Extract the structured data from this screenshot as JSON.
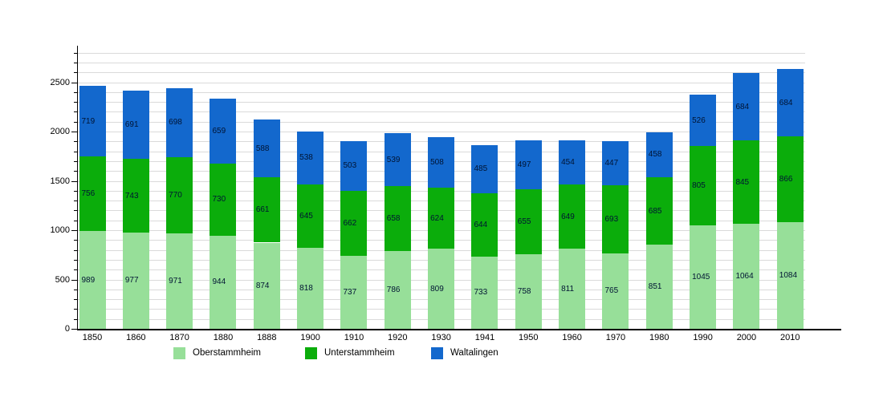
{
  "chart_data": {
    "type": "bar",
    "stacked": true,
    "title": "",
    "categories": [
      "1850",
      "1860",
      "1870",
      "1880",
      "1888",
      "1900",
      "1910",
      "1920",
      "1930",
      "1941",
      "1950",
      "1960",
      "1970",
      "1980",
      "1990",
      "2000",
      "2010"
    ],
    "series": [
      {
        "name": "Oberstammheim",
        "color": "#97DF99",
        "values": [
          989,
          977,
          971,
          944,
          874,
          818,
          737,
          786,
          809,
          733,
          758,
          811,
          765,
          851,
          1045,
          1064,
          1084
        ]
      },
      {
        "name": "Unterstammheim",
        "color": "#0BAD0B",
        "values": [
          756,
          743,
          770,
          730,
          661,
          645,
          662,
          658,
          624,
          644,
          655,
          649,
          693,
          685,
          805,
          845,
          866
        ]
      },
      {
        "name": "Waltalingen",
        "color": "#1368CD",
        "values": [
          719,
          691,
          698,
          659,
          588,
          538,
          503,
          539,
          508,
          485,
          497,
          454,
          447,
          458,
          526,
          684,
          684
        ]
      }
    ],
    "xlabel": "",
    "ylabel": "",
    "ylim": [
      0,
      2870
    ],
    "ytick_labels": [
      "0",
      "500",
      "1000",
      "1500",
      "2000",
      "2500"
    ],
    "ytick_major_step": 500,
    "ytick_minor_step": 100,
    "grid": "horizontal gridlines every 100 units",
    "legend_position": "bottom",
    "value_labels": "numeric value shown inside each stacked segment"
  },
  "colors": {
    "background": "#ffffff",
    "gridline": "#dadada",
    "axis": "#000000",
    "segment_label_text": "#001433",
    "axis_label_text": "#000000"
  }
}
